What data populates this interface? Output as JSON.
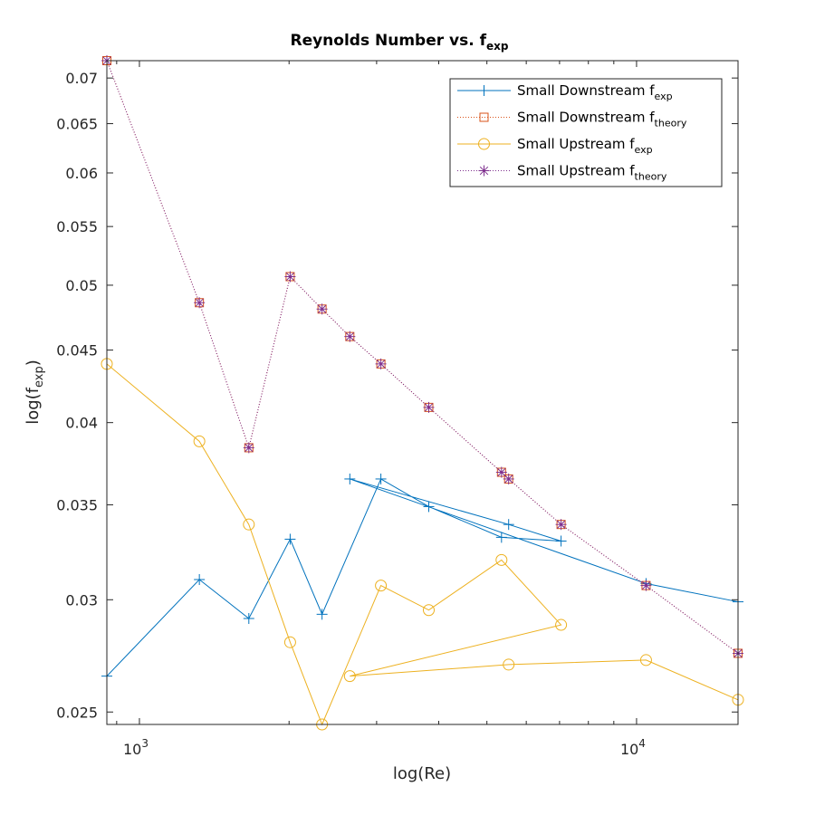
{
  "chart_data": {
    "type": "line",
    "title": "Reynolds Number vs. f",
    "title_sub": "exp",
    "xlabel": "log(Re)",
    "ylabel": "log(f",
    "ylabel_sub": "exp",
    "ylabel_close": ")",
    "xscale": "log",
    "yscale": "log",
    "xlim": [
      860,
      16000
    ],
    "ylim": [
      0.0245,
      0.072
    ],
    "xticks": [
      {
        "value": 1000,
        "base": "10",
        "exp": "3"
      },
      {
        "value": 10000,
        "base": "10",
        "exp": "4"
      }
    ],
    "yticks": [
      0.025,
      0.03,
      0.035,
      0.04,
      0.045,
      0.05,
      0.055,
      0.06,
      0.065,
      0.07
    ],
    "ytick_labels": [
      "0.025",
      "0.03",
      "0.035",
      "0.04",
      "0.045",
      "0.05",
      "0.055",
      "0.06",
      "0.065",
      "0.07"
    ],
    "grid": false,
    "legend_position": "top-right",
    "series": [
      {
        "name": "Small Downstream f",
        "name_sub": "exp",
        "color": "#0072BD",
        "line": "solid",
        "marker": "plus",
        "x": [
          860,
          1320,
          1660,
          2010,
          2330,
          2650,
          3060,
          3820,
          5350,
          5530,
          7050,
          10450,
          16000
        ],
        "y": [
          0.0265,
          0.031,
          0.0291,
          0.0331,
          0.0293,
          0.0365,
          0.0365,
          0.0349,
          0.0332,
          0.0339,
          0.033,
          0.0308,
          0.0299
        ],
        "order": [
          0,
          1,
          2,
          3,
          4,
          6,
          7,
          8,
          10,
          9,
          5,
          11,
          12
        ]
      },
      {
        "name": "Small Downstream f",
        "name_sub": "theory",
        "color": "#D95319",
        "line": "dotted",
        "marker": "square",
        "x": [
          860,
          1320,
          1660,
          2010,
          2330,
          2650,
          3060,
          3820,
          5350,
          5530,
          7050,
          10450,
          16000
        ],
        "y": [
          0.072,
          0.0486,
          0.0384,
          0.0507,
          0.0481,
          0.046,
          0.044,
          0.041,
          0.0369,
          0.0365,
          0.0339,
          0.0307,
          0.0275
        ],
        "order": [
          0,
          1,
          2,
          3,
          4,
          5,
          6,
          7,
          8,
          9,
          10,
          11,
          12
        ]
      },
      {
        "name": "Small Upstream f",
        "name_sub": "exp",
        "color": "#EDB120",
        "line": "solid",
        "marker": "circle",
        "x": [
          860,
          1320,
          1660,
          2010,
          2330,
          2650,
          3060,
          3820,
          5350,
          5530,
          7050,
          10450,
          16000
        ],
        "y": [
          0.044,
          0.0388,
          0.0339,
          0.028,
          0.0245,
          0.0265,
          0.0307,
          0.0295,
          0.032,
          0.027,
          0.0288,
          0.0272,
          0.0255
        ],
        "order": [
          0,
          1,
          2,
          3,
          4,
          6,
          7,
          8,
          10,
          5,
          9,
          11,
          12
        ]
      },
      {
        "name": "Small Upstream f",
        "name_sub": "theory",
        "color": "#7E2F8E",
        "line": "dotted",
        "marker": "asterisk",
        "x": [
          860,
          1320,
          1660,
          2010,
          2330,
          2650,
          3060,
          3820,
          5350,
          5530,
          7050,
          10450,
          16000
        ],
        "y": [
          0.072,
          0.0486,
          0.0384,
          0.0507,
          0.0481,
          0.046,
          0.044,
          0.041,
          0.0369,
          0.0365,
          0.0339,
          0.0307,
          0.0275
        ],
        "order": [
          0,
          1,
          2,
          3,
          4,
          5,
          6,
          7,
          8,
          9,
          10,
          11,
          12
        ]
      }
    ]
  }
}
